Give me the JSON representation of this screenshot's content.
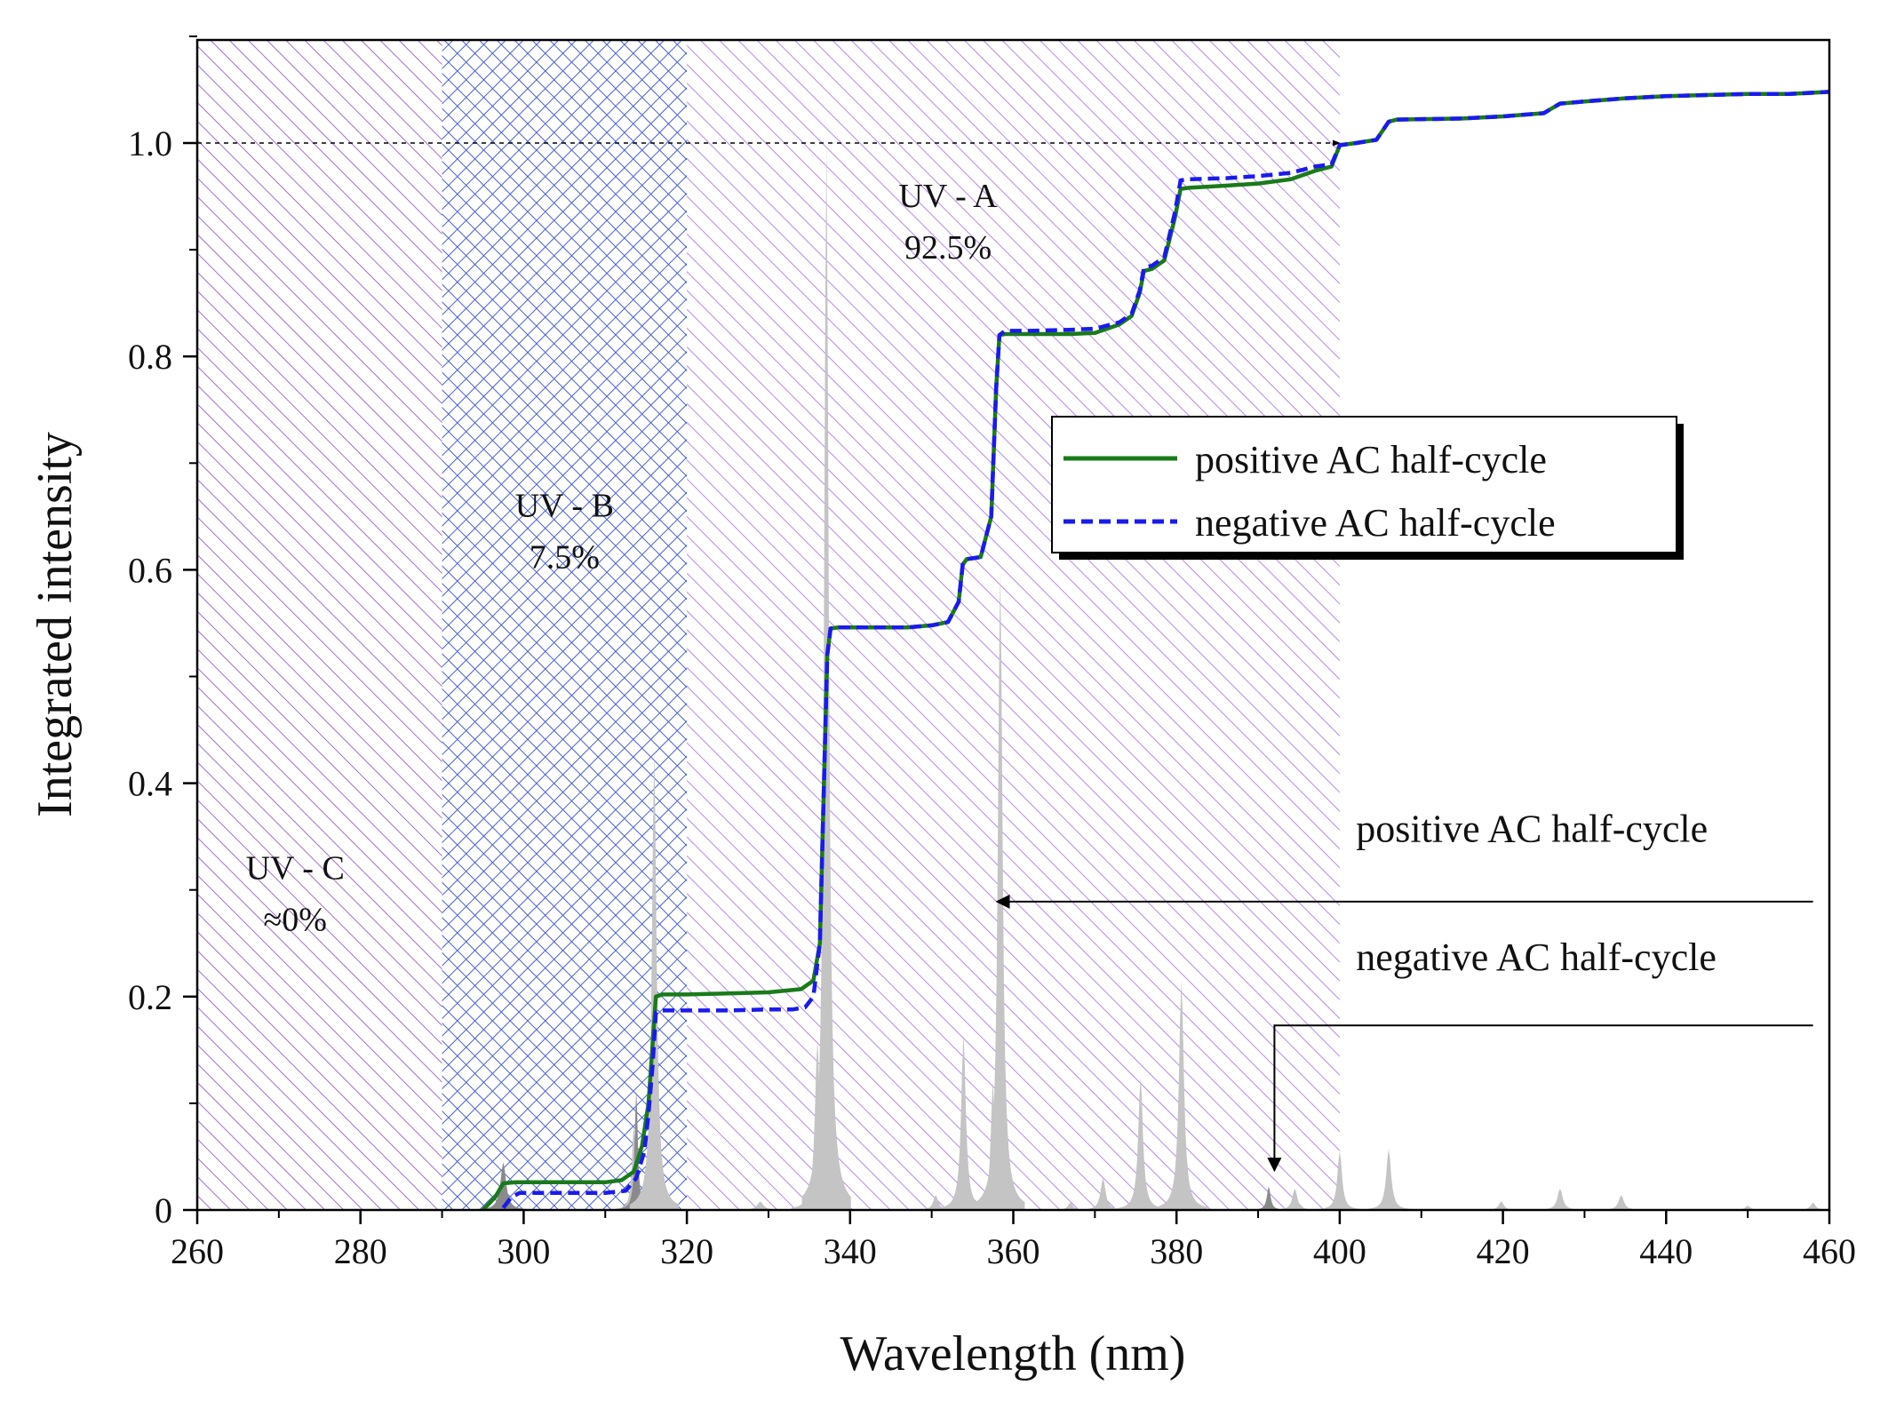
{
  "chart_data": {
    "type": "line",
    "xlabel": "Wavelength (nm)",
    "ylabel": "Integrated intensity",
    "xlim": [
      260,
      460
    ],
    "ylim": [
      0,
      1.1
    ],
    "x_ticks": [
      260,
      280,
      300,
      320,
      340,
      360,
      380,
      400,
      420,
      440,
      460
    ],
    "x_tick_labels": [
      "260",
      "280",
      "300",
      "320",
      "340",
      "360",
      "380",
      "400",
      "420",
      "440",
      "460"
    ],
    "y_ticks": [
      0,
      0.2,
      0.4,
      0.6,
      0.8,
      1.0
    ],
    "y_tick_labels": [
      "0",
      "0.2",
      "0.4",
      "0.6",
      "0.8",
      "1.0"
    ],
    "colors": {
      "positive": "#1a7a1a",
      "negative": "#1a1aee",
      "spectrum": "#c4c4c4",
      "spectrum_dark": "#8a8a8a",
      "uvc_hatch": "#a070c8",
      "uvb_hatch": "#4a5fd0",
      "uva_hatch": "#b58ae0"
    },
    "bands": [
      {
        "name": "UV-C",
        "range": [
          260,
          290
        ],
        "pattern": "diag"
      },
      {
        "name": "UV-B",
        "range": [
          290,
          320
        ],
        "pattern": "cross"
      },
      {
        "name": "UV-A",
        "range": [
          320,
          400
        ],
        "pattern": "diag"
      }
    ],
    "band_labels": [
      {
        "line1": "UV - C",
        "line2": "≈0%",
        "x": 272,
        "y": 0.31
      },
      {
        "line1": "UV - B",
        "line2": "7.5%",
        "x": 305,
        "y": 0.65
      },
      {
        "line1": "UV - A",
        "line2": "92.5%",
        "x": 352,
        "y": 0.94
      }
    ],
    "reference_line": {
      "y": 1.0,
      "x_from": 260,
      "x_to": 400
    },
    "legend": {
      "placement": "center-right",
      "entries": [
        {
          "label": "positive AC half-cycle",
          "style": "solid"
        },
        {
          "label": "negative AC half-cycle",
          "style": "dashed"
        }
      ]
    },
    "annotations": [
      {
        "text": "positive AC half-cycle",
        "text_x": 402,
        "text_y": 0.345,
        "arrow_from": [
          458,
          0.289
        ],
        "arrow_to": [
          358,
          0.289
        ],
        "style": "horizontal"
      },
      {
        "text": "negative AC half-cycle",
        "text_x": 402,
        "text_y": 0.225,
        "arrow_from": [
          458,
          0.173
        ],
        "elbow_x": 392,
        "arrow_to": [
          392,
          0.037
        ],
        "style": "elbow"
      }
    ],
    "series": [
      {
        "name": "positive AC half-cycle",
        "x": [
          295,
          296.5,
          297.5,
          299,
          305,
          310,
          312,
          313.5,
          314.5,
          315.3,
          315.8,
          316.2,
          317,
          320,
          325,
          330,
          334,
          335.5,
          336.3,
          336.8,
          337.2,
          337.6,
          338.5,
          342,
          347,
          350,
          352,
          353.3,
          353.8,
          354.3,
          356,
          357.3,
          357.9,
          358.3,
          359,
          362,
          367,
          370,
          373,
          374.5,
          375.5,
          376,
          377,
          378.5,
          379.8,
          380.5,
          381.5,
          386,
          390,
          394,
          397,
          399,
          400,
          402,
          404.5,
          406,
          407,
          415,
          420,
          425,
          427,
          430,
          435,
          440,
          450,
          455,
          460
        ],
        "y": [
          0,
          0.012,
          0.025,
          0.026,
          0.026,
          0.026,
          0.028,
          0.036,
          0.06,
          0.1,
          0.155,
          0.2,
          0.202,
          0.202,
          0.203,
          0.204,
          0.207,
          0.215,
          0.25,
          0.4,
          0.52,
          0.545,
          0.546,
          0.546,
          0.546,
          0.548,
          0.551,
          0.57,
          0.605,
          0.61,
          0.612,
          0.65,
          0.77,
          0.82,
          0.821,
          0.821,
          0.821,
          0.822,
          0.83,
          0.838,
          0.86,
          0.88,
          0.882,
          0.89,
          0.93,
          0.957,
          0.958,
          0.96,
          0.962,
          0.966,
          0.974,
          0.978,
          0.998,
          1.0,
          1.003,
          1.02,
          1.022,
          1.023,
          1.025,
          1.028,
          1.037,
          1.039,
          1.042,
          1.044,
          1.046,
          1.046,
          1.048
        ]
      },
      {
        "name": "negative AC half-cycle",
        "x": [
          297.5,
          298.5,
          299.5,
          305,
          310,
          312.5,
          313.8,
          314.8,
          315.3,
          315.8,
          316.2,
          317,
          320,
          325,
          330,
          333,
          334.5,
          335.5,
          336.3,
          336.8,
          337.2,
          337.6,
          338.5,
          342,
          347,
          350,
          352,
          353.3,
          353.8,
          354.3,
          356,
          357.3,
          357.9,
          358.3,
          359,
          362,
          367,
          370,
          373,
          374.5,
          375.5,
          376,
          377,
          378.5,
          379.8,
          380.5,
          381.5,
          386,
          390,
          394,
          397,
          399,
          400,
          402,
          404.5,
          406,
          407,
          415,
          420,
          425,
          427,
          430,
          435,
          440,
          450,
          455,
          460
        ],
        "y": [
          0.002,
          0.012,
          0.016,
          0.016,
          0.016,
          0.018,
          0.03,
          0.055,
          0.09,
          0.135,
          0.185,
          0.187,
          0.187,
          0.187,
          0.188,
          0.188,
          0.19,
          0.2,
          0.25,
          0.4,
          0.52,
          0.545,
          0.546,
          0.546,
          0.546,
          0.548,
          0.551,
          0.57,
          0.605,
          0.61,
          0.612,
          0.65,
          0.77,
          0.82,
          0.824,
          0.824,
          0.825,
          0.826,
          0.832,
          0.84,
          0.862,
          0.883,
          0.885,
          0.893,
          0.935,
          0.965,
          0.966,
          0.967,
          0.969,
          0.972,
          0.978,
          0.98,
          0.998,
          1.0,
          1.003,
          1.02,
          1.022,
          1.023,
          1.025,
          1.028,
          1.037,
          1.039,
          1.042,
          1.044,
          1.046,
          1.046,
          1.048
        ]
      }
    ],
    "spectrum_peaks": [
      {
        "x": 297.5,
        "h": 0.045,
        "w": 0.9,
        "tone": "dark"
      },
      {
        "x": 313.5,
        "h": 0.08,
        "w": 0.6,
        "tone": "light"
      },
      {
        "x": 313.8,
        "h": 0.112,
        "w": 0.5,
        "tone": "dark"
      },
      {
        "x": 315.2,
        "h": 0.055,
        "w": 0.5,
        "tone": "light"
      },
      {
        "x": 316.0,
        "h": 0.43,
        "w": 0.75,
        "tone": "light"
      },
      {
        "x": 329.0,
        "h": 0.008,
        "w": 1.0,
        "tone": "light"
      },
      {
        "x": 336.0,
        "h": 0.16,
        "w": 0.8,
        "tone": "light"
      },
      {
        "x": 337.1,
        "h": 1.0,
        "w": 0.75,
        "tone": "light"
      },
      {
        "x": 350.5,
        "h": 0.014,
        "w": 0.8,
        "tone": "light"
      },
      {
        "x": 353.9,
        "h": 0.165,
        "w": 0.75,
        "tone": "light"
      },
      {
        "x": 357.5,
        "h": 0.12,
        "w": 0.7,
        "tone": "light"
      },
      {
        "x": 358.4,
        "h": 0.6,
        "w": 0.75,
        "tone": "light"
      },
      {
        "x": 367.0,
        "h": 0.007,
        "w": 0.8,
        "tone": "light"
      },
      {
        "x": 371.0,
        "h": 0.03,
        "w": 0.8,
        "tone": "light"
      },
      {
        "x": 375.6,
        "h": 0.125,
        "w": 0.75,
        "tone": "light"
      },
      {
        "x": 380.6,
        "h": 0.215,
        "w": 0.8,
        "tone": "light"
      },
      {
        "x": 391.3,
        "h": 0.022,
        "w": 0.6,
        "tone": "dark"
      },
      {
        "x": 394.5,
        "h": 0.02,
        "w": 0.8,
        "tone": "light"
      },
      {
        "x": 400.0,
        "h": 0.055,
        "w": 0.75,
        "tone": "light"
      },
      {
        "x": 406.0,
        "h": 0.057,
        "w": 0.8,
        "tone": "light"
      },
      {
        "x": 419.8,
        "h": 0.008,
        "w": 0.8,
        "tone": "light"
      },
      {
        "x": 427.0,
        "h": 0.02,
        "w": 0.85,
        "tone": "light"
      },
      {
        "x": 434.5,
        "h": 0.014,
        "w": 0.85,
        "tone": "light"
      },
      {
        "x": 450.0,
        "h": 0.004,
        "w": 0.8,
        "tone": "light"
      },
      {
        "x": 458.0,
        "h": 0.007,
        "w": 0.8,
        "tone": "light"
      }
    ]
  }
}
